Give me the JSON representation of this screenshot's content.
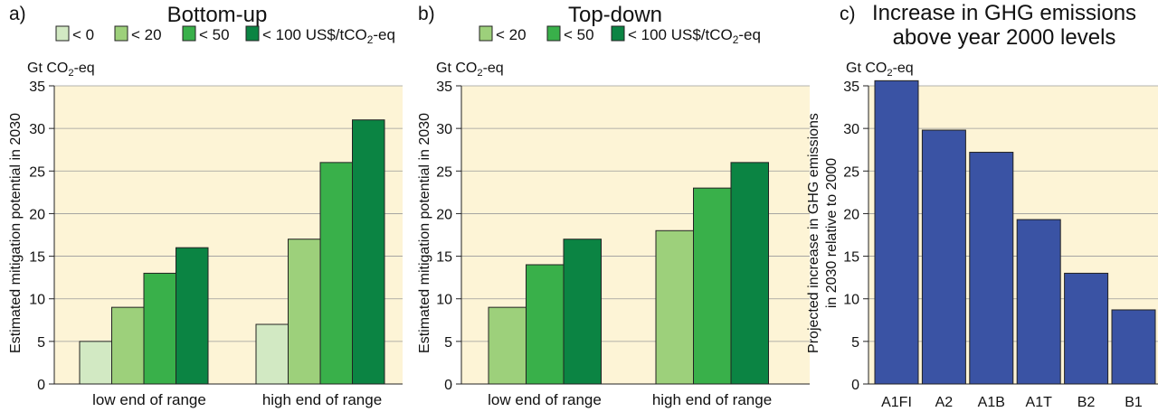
{
  "chart_data": [
    {
      "type": "bar",
      "panel_label": "a)",
      "title": "Bottom-up",
      "unit_label": "Gt CO₂-eq",
      "ylabel": "Estimated mitigation potential in 2030",
      "ylim": [
        0,
        35
      ],
      "yticks": [
        0,
        5,
        10,
        15,
        20,
        25,
        30,
        35
      ],
      "categories": [
        "low end of range",
        "high end of range"
      ],
      "series": [
        {
          "name": "< 0",
          "color": "#d2e9c3",
          "values": [
            5,
            7
          ]
        },
        {
          "name": "< 20",
          "color": "#9dd07b",
          "values": [
            9,
            17
          ]
        },
        {
          "name": "< 50",
          "color": "#39b04a",
          "values": [
            13,
            26
          ]
        },
        {
          "name": "< 100 US$/tCO₂-eq",
          "color": "#0b8443",
          "values": [
            16,
            31
          ]
        }
      ],
      "background": "#fdf4d6",
      "grid": true,
      "legend_position": "top"
    },
    {
      "type": "bar",
      "panel_label": "b)",
      "title": "Top-down",
      "unit_label": "Gt CO₂-eq",
      "ylabel": "Estimated mitigation potential in 2030",
      "ylim": [
        0,
        35
      ],
      "yticks": [
        0,
        5,
        10,
        15,
        20,
        25,
        30,
        35
      ],
      "categories": [
        "low end of range",
        "high end of range"
      ],
      "series": [
        {
          "name": "< 20",
          "color": "#9dd07b",
          "values": [
            9,
            18
          ]
        },
        {
          "name": "< 50",
          "color": "#39b04a",
          "values": [
            14,
            23
          ]
        },
        {
          "name": "< 100 US$/tCO₂-eq",
          "color": "#0b8443",
          "values": [
            17,
            26
          ]
        }
      ],
      "background": "#fdf4d6",
      "grid": true,
      "legend_position": "top"
    },
    {
      "type": "bar",
      "panel_label": "c)",
      "title": [
        "Increase in GHG emissions",
        "above year 2000 levels"
      ],
      "unit_label": "Gt CO₂-eq",
      "ylabel": [
        "Projected increase in GHG emissions",
        "in 2030 relative to 2000"
      ],
      "ylim": [
        0,
        35
      ],
      "yticks": [
        0,
        5,
        10,
        15,
        20,
        25,
        30,
        35
      ],
      "categories": [
        "A1FI",
        "A2",
        "A1B",
        "A1T",
        "B2",
        "B1"
      ],
      "values": [
        35.6,
        29.8,
        27.2,
        19.3,
        13.0,
        8.7
      ],
      "bar_color": "#3a53a4",
      "background": "#fdf4d6",
      "grid": true
    }
  ]
}
